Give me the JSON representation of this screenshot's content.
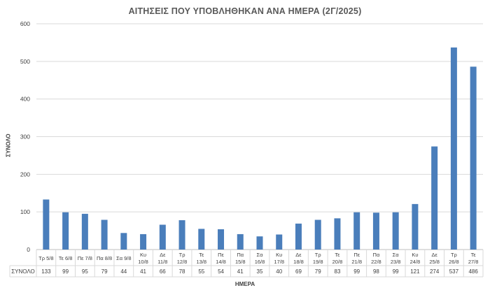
{
  "chart_data": {
    "type": "bar",
    "title": "ΑΙΤΗΣΕΙΣ ΠΟΥ ΥΠΟΒΛΗΘΗΚΑΝ ΑΝΑ ΗΜΕΡΑ (2Γ/2025)",
    "xlabel": "ΗΜΕΡΑ",
    "ylabel": "ΣΥΝΟΛΟ",
    "ylim": [
      0,
      600
    ],
    "yticks": [
      0,
      100,
      200,
      300,
      400,
      500,
      600
    ],
    "grid": true,
    "bar_color": "#4a7ebb",
    "categories": [
      [
        "Τρ 5/8"
      ],
      [
        "Τε 6/8"
      ],
      [
        "Πε 7/8"
      ],
      [
        "Πα 8/8"
      ],
      [
        "Σα 9/8"
      ],
      [
        "Κυ",
        "10/8"
      ],
      [
        "Δε",
        "11/8"
      ],
      [
        "Τρ",
        "12/8"
      ],
      [
        "Τε",
        "13/8"
      ],
      [
        "Πε",
        "14/8"
      ],
      [
        "Πα",
        "15/8"
      ],
      [
        "Σα",
        "16/8"
      ],
      [
        "Κυ",
        "17/8"
      ],
      [
        "Δε",
        "18/8"
      ],
      [
        "Τρ",
        "19/8"
      ],
      [
        "Τε",
        "20/8"
      ],
      [
        "Πε",
        "21/8"
      ],
      [
        "Πα",
        "22/8"
      ],
      [
        "Σα",
        "23/8"
      ],
      [
        "Κυ",
        "24/8"
      ],
      [
        "Δε",
        "25/8"
      ],
      [
        "Τρ",
        "26/8"
      ],
      [
        "Τε",
        "27/8"
      ]
    ],
    "series": [
      {
        "name": "ΣΥΝΟΛΟ",
        "values": [
          133,
          99,
          95,
          79,
          44,
          41,
          66,
          78,
          55,
          54,
          41,
          35,
          40,
          69,
          79,
          83,
          99,
          98,
          99,
          121,
          274,
          537,
          486
        ]
      }
    ]
  }
}
